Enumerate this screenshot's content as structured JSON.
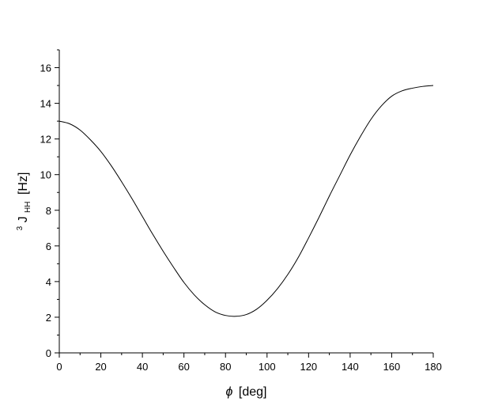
{
  "chart_data": {
    "type": "line",
    "title": "",
    "xlabel": {
      "symbol": "ϕ",
      "unit": "[deg]"
    },
    "ylabel": {
      "superscript": "3",
      "main": "J",
      "subscript": "HH",
      "unit": "[Hz]"
    },
    "xlim": [
      0,
      180
    ],
    "ylim": [
      0,
      17
    ],
    "xticks": [
      "0",
      "20",
      "40",
      "60",
      "80",
      "100",
      "120",
      "140",
      "160",
      "180"
    ],
    "yticks": [
      "0",
      "2",
      "4",
      "6",
      "8",
      "10",
      "12",
      "14",
      "16"
    ],
    "grid": false,
    "legend": "none",
    "line_color": "#000000",
    "series": [
      {
        "x": [
          0,
          5,
          10,
          15,
          20,
          25,
          30,
          35,
          40,
          45,
          50,
          55,
          60,
          65,
          70,
          75,
          80,
          85,
          90,
          95,
          100,
          105,
          110,
          115,
          120,
          125,
          130,
          135,
          140,
          145,
          150,
          155,
          160,
          165,
          170,
          175,
          180
        ],
        "values": [
          13.0,
          12.85,
          12.5,
          11.95,
          11.3,
          10.5,
          9.6,
          8.65,
          7.65,
          6.65,
          5.7,
          4.8,
          3.95,
          3.25,
          2.7,
          2.3,
          2.1,
          2.05,
          2.15,
          2.45,
          2.95,
          3.6,
          4.4,
          5.35,
          6.45,
          7.6,
          8.8,
          9.95,
          11.1,
          12.15,
          13.1,
          13.85,
          14.4,
          14.7,
          14.85,
          14.95,
          15.0
        ]
      }
    ]
  }
}
